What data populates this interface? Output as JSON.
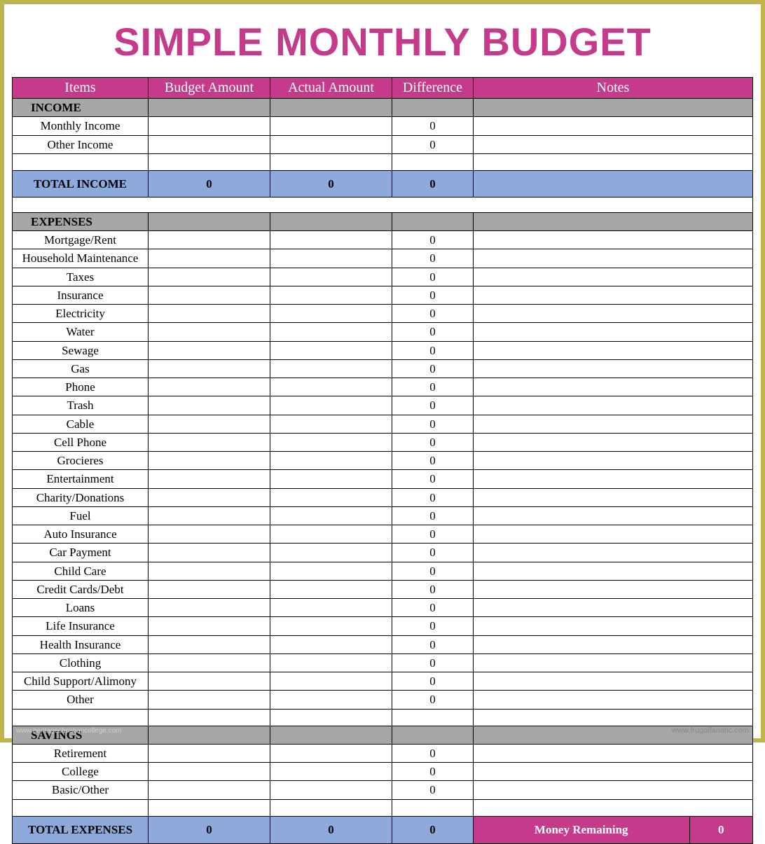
{
  "title": "SIMPLE MONTHLY BUDGET",
  "colors": {
    "outer_border": "#c0b54a",
    "header_bg": "#c53a8a",
    "header_text": "#ffffff",
    "section_bg": "#a6a6a6",
    "total_bg": "#8eaadb",
    "cell_border": "#000000",
    "title_color": "#c53a8a",
    "money_remaining_bg": "#c53a8a"
  },
  "columns": {
    "items": "Items",
    "budget": "Budget Amount",
    "actual": "Actual Amount",
    "diff": "Difference",
    "notes": "Notes"
  },
  "sections": {
    "income": {
      "label": "INCOME",
      "rows": [
        {
          "label": "Monthly Income",
          "budget": "",
          "actual": "",
          "diff": "0",
          "notes": ""
        },
        {
          "label": "Other Income",
          "budget": "",
          "actual": "",
          "diff": "0",
          "notes": ""
        },
        {
          "label": "",
          "budget": "",
          "actual": "",
          "diff": "",
          "notes": ""
        }
      ],
      "total": {
        "label": "TOTAL INCOME",
        "budget": "0",
        "actual": "0",
        "diff": "0",
        "notes": ""
      }
    },
    "expenses": {
      "label": "EXPENSES",
      "rows": [
        {
          "label": "Mortgage/Rent",
          "budget": "",
          "actual": "",
          "diff": "0",
          "notes": ""
        },
        {
          "label": "Household Maintenance",
          "budget": "",
          "actual": "",
          "diff": "0",
          "notes": ""
        },
        {
          "label": "Taxes",
          "budget": "",
          "actual": "",
          "diff": "0",
          "notes": ""
        },
        {
          "label": "Insurance",
          "budget": "",
          "actual": "",
          "diff": "0",
          "notes": ""
        },
        {
          "label": "Electricity",
          "budget": "",
          "actual": "",
          "diff": "0",
          "notes": ""
        },
        {
          "label": "Water",
          "budget": "",
          "actual": "",
          "diff": "0",
          "notes": ""
        },
        {
          "label": "Sewage",
          "budget": "",
          "actual": "",
          "diff": "0",
          "notes": ""
        },
        {
          "label": "Gas",
          "budget": "",
          "actual": "",
          "diff": "0",
          "notes": ""
        },
        {
          "label": "Phone",
          "budget": "",
          "actual": "",
          "diff": "0",
          "notes": ""
        },
        {
          "label": "Trash",
          "budget": "",
          "actual": "",
          "diff": "0",
          "notes": ""
        },
        {
          "label": "Cable",
          "budget": "",
          "actual": "",
          "diff": "0",
          "notes": ""
        },
        {
          "label": "Cell Phone",
          "budget": "",
          "actual": "",
          "diff": "0",
          "notes": ""
        },
        {
          "label": "Grocieres",
          "budget": "",
          "actual": "",
          "diff": "0",
          "notes": ""
        },
        {
          "label": "Entertainment",
          "budget": "",
          "actual": "",
          "diff": "0",
          "notes": ""
        },
        {
          "label": "Charity/Donations",
          "budget": "",
          "actual": "",
          "diff": "0",
          "notes": ""
        },
        {
          "label": "Fuel",
          "budget": "",
          "actual": "",
          "diff": "0",
          "notes": ""
        },
        {
          "label": "Auto Insurance",
          "budget": "",
          "actual": "",
          "diff": "0",
          "notes": ""
        },
        {
          "label": "Car Payment",
          "budget": "",
          "actual": "",
          "diff": "0",
          "notes": ""
        },
        {
          "label": "Child Care",
          "budget": "",
          "actual": "",
          "diff": "0",
          "notes": ""
        },
        {
          "label": "Credit Cards/Debt",
          "budget": "",
          "actual": "",
          "diff": "0",
          "notes": ""
        },
        {
          "label": "Loans",
          "budget": "",
          "actual": "",
          "diff": "0",
          "notes": ""
        },
        {
          "label": "Life Insurance",
          "budget": "",
          "actual": "",
          "diff": "0",
          "notes": ""
        },
        {
          "label": "Health Insurance",
          "budget": "",
          "actual": "",
          "diff": "0",
          "notes": ""
        },
        {
          "label": "Clothing",
          "budget": "",
          "actual": "",
          "diff": "0",
          "notes": ""
        },
        {
          "label": "Child Support/Alimony",
          "budget": "",
          "actual": "",
          "diff": "0",
          "notes": ""
        },
        {
          "label": "Other",
          "budget": "",
          "actual": "",
          "diff": "0",
          "notes": ""
        },
        {
          "label": "",
          "budget": "",
          "actual": "",
          "diff": "",
          "notes": ""
        }
      ]
    },
    "savings": {
      "label": "SAVINGS",
      "rows": [
        {
          "label": "Retirement",
          "budget": "",
          "actual": "",
          "diff": "0",
          "notes": ""
        },
        {
          "label": "College",
          "budget": "",
          "actual": "",
          "diff": "0",
          "notes": ""
        },
        {
          "label": "Basic/Other",
          "budget": "",
          "actual": "",
          "diff": "0",
          "notes": ""
        },
        {
          "label": "",
          "budget": "",
          "actual": "",
          "diff": "",
          "notes": ""
        }
      ]
    },
    "total_expenses": {
      "label": "TOTAL EXPENSES",
      "budget": "0",
      "actual": "0",
      "diff": "0",
      "money_remaining_label": "Money Remaining",
      "money_remaining_value": "0"
    }
  },
  "footer": {
    "left": "www.heritagechristiancollege.com",
    "right": "www.frugalfanatic.com"
  }
}
